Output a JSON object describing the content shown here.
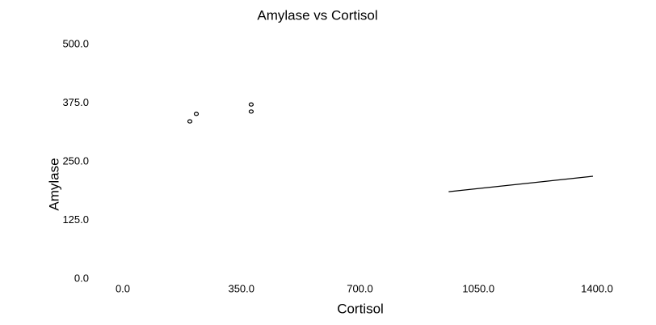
{
  "chart_data": {
    "type": "scatter",
    "title": "Amylase vs Cortisol",
    "x_label": "Cortisol",
    "y_label": "Amylase",
    "x": [
      198,
      217,
      379,
      379
    ],
    "values": [
      336,
      352,
      372,
      357
    ],
    "color": "#000000",
    "trend": {
      "x": [
        962,
        1388
      ],
      "values": [
        186,
        219
      ],
      "color": "#000000"
    },
    "xlim": [
      0,
      1400
    ],
    "ylim": [
      0,
      500
    ],
    "xticks": [
      {
        "value": 0,
        "label": "0.0"
      },
      {
        "value": 350,
        "label": "350.0"
      },
      {
        "value": 700,
        "label": "700.0"
      },
      {
        "value": 1050,
        "label": "1050.0"
      },
      {
        "value": 1400,
        "label": "1400.0"
      }
    ],
    "yticks": [
      {
        "value": 0,
        "label": "0.0"
      },
      {
        "value": 125,
        "label": "125.0"
      },
      {
        "value": 250,
        "label": "250.0"
      },
      {
        "value": 375,
        "label": "375.0"
      },
      {
        "value": 500,
        "label": "500.0"
      }
    ]
  }
}
